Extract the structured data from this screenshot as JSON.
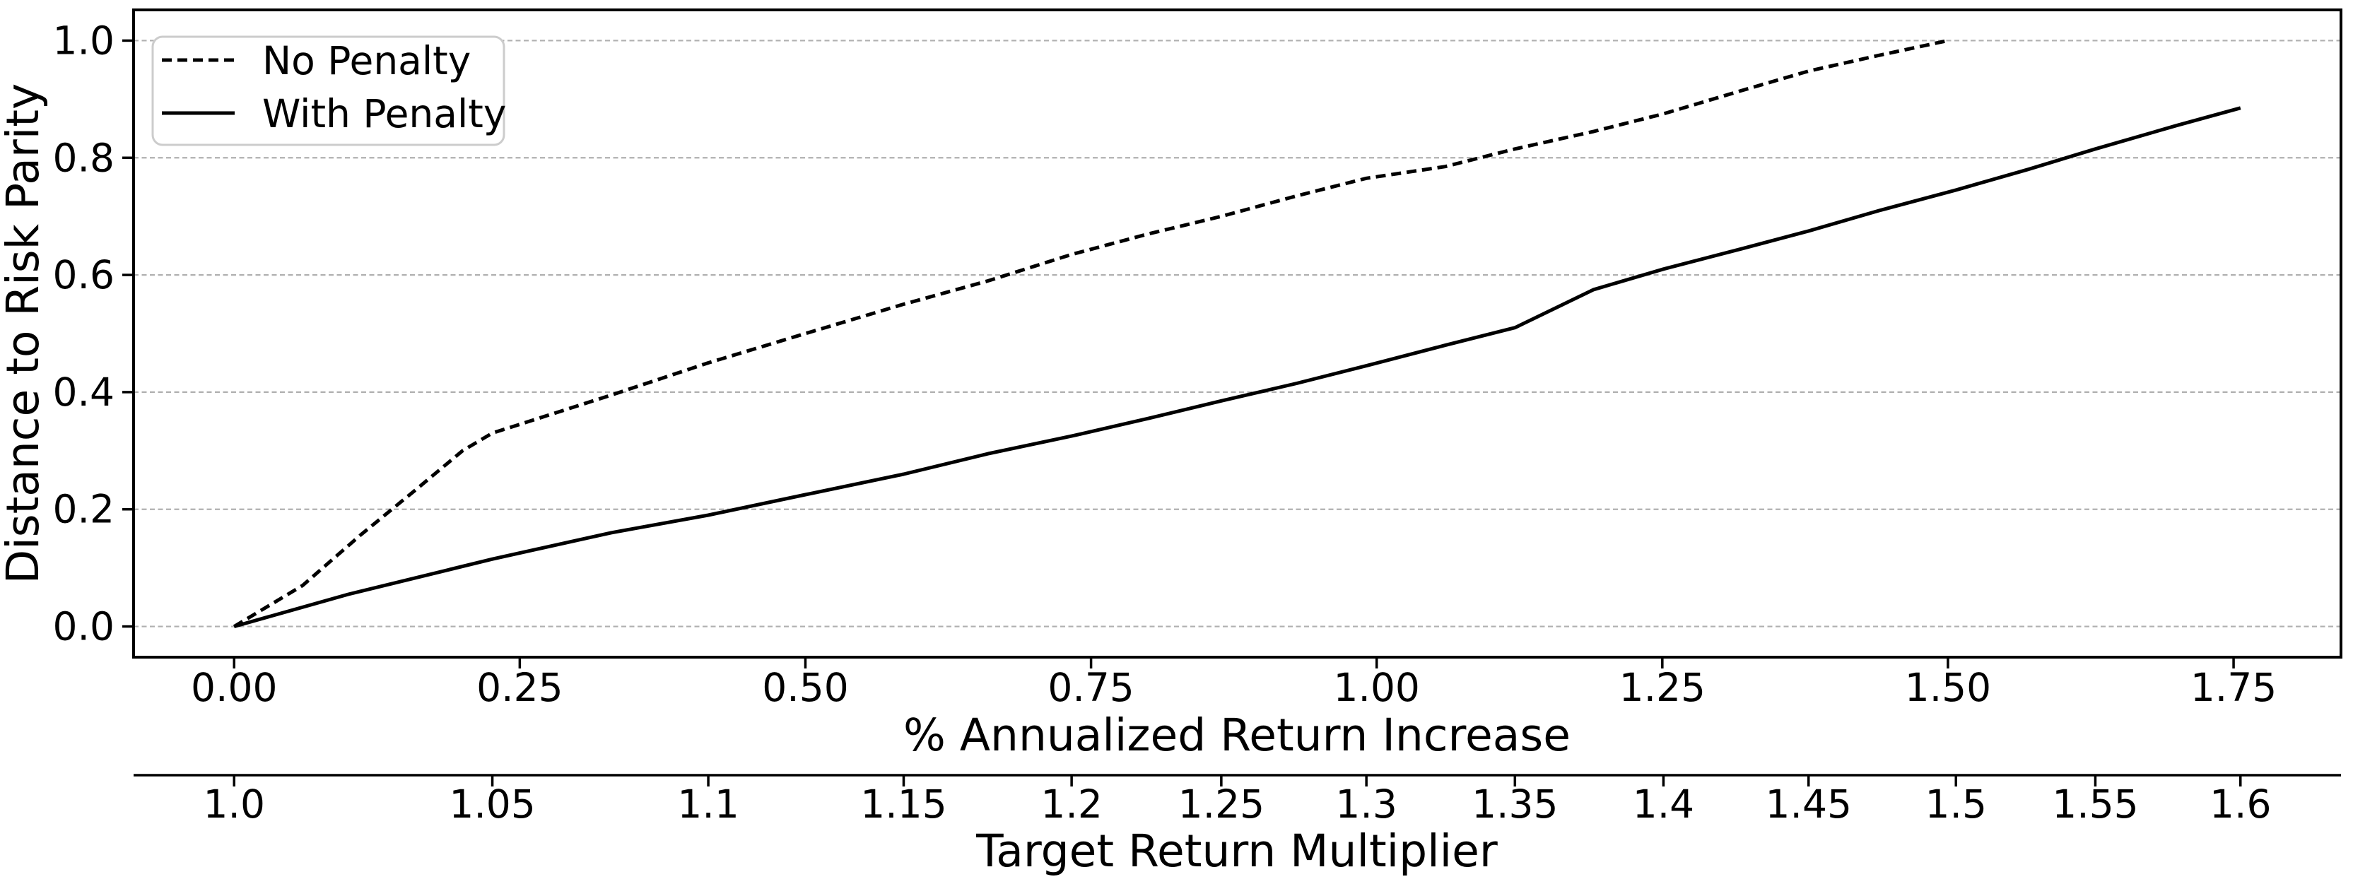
{
  "chart_data": {
    "type": "line",
    "title": "",
    "xlabel": "% Annualized Return Increase",
    "ylabel": "Distance to Risk Parity",
    "xlim": [
      -0.088,
      1.844
    ],
    "ylim": [
      -0.0524,
      1.0524
    ],
    "grid": {
      "axis": "y",
      "linestyle": "dashed",
      "on": true
    },
    "x_axis": {
      "tick_values": [
        0.0,
        0.25,
        0.5,
        0.75,
        1.0,
        1.25,
        1.5,
        1.75
      ],
      "tick_labels": [
        "0.00",
        "0.25",
        "0.50",
        "0.75",
        "1.00",
        "1.25",
        "1.50",
        "1.75"
      ]
    },
    "y_axis": {
      "tick_values": [
        0.0,
        0.2,
        0.4,
        0.6,
        0.8,
        1.0
      ],
      "tick_labels": [
        "0.0",
        "0.2",
        "0.4",
        "0.6",
        "0.8",
        "1.0"
      ]
    },
    "secondary_x_axis": {
      "label": "Target Return Multiplier",
      "tick_labels": [
        "1.0",
        "1.05",
        "1.1",
        "1.15",
        "1.2",
        "1.25",
        "1.3",
        "1.35",
        "1.4",
        "1.45",
        "1.5",
        "1.55",
        "1.6"
      ],
      "tick_x_positions": [
        0.0,
        0.226,
        0.415,
        0.586,
        0.733,
        0.864,
        0.991,
        1.121,
        1.251,
        1.378,
        1.507,
        1.629,
        1.756
      ]
    },
    "legend": {
      "location": "upper left",
      "entries": [
        {
          "label": "No Penalty",
          "linestyle": "dashed"
        },
        {
          "label": "With Penalty",
          "linestyle": "solid"
        }
      ]
    },
    "series": [
      {
        "name": "No Penalty",
        "linestyle": "dashed",
        "color": "#000000",
        "points": [
          [
            0.0,
            0.0
          ],
          [
            0.06,
            0.07
          ],
          [
            0.11,
            0.155
          ],
          [
            0.16,
            0.235
          ],
          [
            0.2,
            0.3
          ],
          [
            0.226,
            0.33
          ],
          [
            0.25,
            0.345
          ],
          [
            0.33,
            0.395
          ],
          [
            0.415,
            0.45
          ],
          [
            0.5,
            0.5
          ],
          [
            0.586,
            0.55
          ],
          [
            0.66,
            0.59
          ],
          [
            0.733,
            0.635
          ],
          [
            0.8,
            0.67
          ],
          [
            0.864,
            0.7
          ],
          [
            0.93,
            0.735
          ],
          [
            0.991,
            0.765
          ],
          [
            1.06,
            0.785
          ],
          [
            1.121,
            0.815
          ],
          [
            1.19,
            0.845
          ],
          [
            1.251,
            0.875
          ],
          [
            1.32,
            0.915
          ],
          [
            1.378,
            0.948
          ],
          [
            1.44,
            0.975
          ],
          [
            1.5,
            1.0
          ]
        ]
      },
      {
        "name": "With Penalty",
        "linestyle": "solid",
        "color": "#000000",
        "points": [
          [
            0.0,
            0.0
          ],
          [
            0.1,
            0.055
          ],
          [
            0.226,
            0.115
          ],
          [
            0.33,
            0.16
          ],
          [
            0.415,
            0.19
          ],
          [
            0.5,
            0.225
          ],
          [
            0.586,
            0.26
          ],
          [
            0.66,
            0.295
          ],
          [
            0.733,
            0.325
          ],
          [
            0.8,
            0.355
          ],
          [
            0.864,
            0.385
          ],
          [
            0.93,
            0.415
          ],
          [
            0.991,
            0.445
          ],
          [
            1.06,
            0.48
          ],
          [
            1.121,
            0.51
          ],
          [
            1.19,
            0.575
          ],
          [
            1.251,
            0.61
          ],
          [
            1.32,
            0.645
          ],
          [
            1.378,
            0.675
          ],
          [
            1.44,
            0.71
          ],
          [
            1.507,
            0.745
          ],
          [
            1.57,
            0.78
          ],
          [
            1.629,
            0.815
          ],
          [
            1.7,
            0.855
          ],
          [
            1.756,
            0.885
          ]
        ]
      }
    ]
  },
  "colors": {
    "background": "#ffffff",
    "line": "#000000",
    "grid": "#b0b0b0",
    "text": "#000000",
    "legend_border": "#cccccc"
  }
}
